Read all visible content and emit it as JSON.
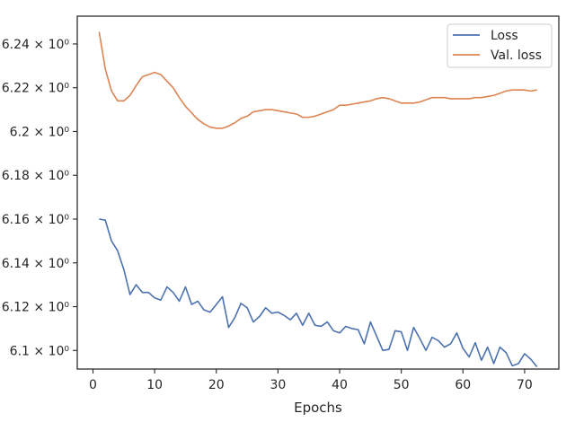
{
  "chart_data": {
    "type": "line",
    "xlabel": "Epochs",
    "ylabel": "",
    "xlim": [
      -2.55,
      75.55
    ],
    "ylim": [
      6.0915,
      6.2527
    ],
    "grid": false,
    "legend_position": "top-right",
    "x_ticks": [
      0,
      10,
      20,
      30,
      40,
      50,
      60,
      70
    ],
    "y_ticks": [
      6.1,
      6.12,
      6.14,
      6.16,
      6.18,
      6.2,
      6.22,
      6.24
    ],
    "x_tick_labels": [
      "0",
      "10",
      "20",
      "30",
      "40",
      "50",
      "60",
      "70"
    ],
    "y_tick_labels": [
      "6.1 × 10⁰",
      "6.12 × 10⁰",
      "6.14 × 10⁰",
      "6.16 × 10⁰",
      "6.18 × 10⁰",
      "6.2 × 10⁰",
      "6.22 × 10⁰",
      "6.24 × 10⁰"
    ],
    "x": [
      1,
      2,
      3,
      4,
      5,
      6,
      7,
      8,
      9,
      10,
      11,
      12,
      13,
      14,
      15,
      16,
      17,
      18,
      19,
      20,
      21,
      22,
      23,
      24,
      25,
      26,
      27,
      28,
      29,
      30,
      31,
      32,
      33,
      34,
      35,
      36,
      37,
      38,
      39,
      40,
      41,
      42,
      43,
      44,
      45,
      46,
      47,
      48,
      49,
      50,
      51,
      52,
      53,
      54,
      55,
      56,
      57,
      58,
      59,
      60,
      61,
      62,
      63,
      64,
      65,
      66,
      67,
      68,
      69,
      70,
      71,
      72
    ],
    "series": [
      {
        "name": "Loss",
        "color": "#4c72b0",
        "values": [
          6.16,
          6.1595,
          6.15,
          6.1455,
          6.137,
          6.1255,
          6.13,
          6.1265,
          6.1265,
          6.124,
          6.123,
          6.129,
          6.1265,
          6.1225,
          6.129,
          6.121,
          6.1225,
          6.1185,
          6.1175,
          6.121,
          6.1245,
          6.1105,
          6.115,
          6.1215,
          6.1195,
          6.113,
          6.1155,
          6.1195,
          6.117,
          6.1175,
          6.116,
          6.114,
          6.117,
          6.1115,
          6.117,
          6.1115,
          6.111,
          6.113,
          6.109,
          6.108,
          6.111,
          6.11,
          6.1095,
          6.103,
          6.113,
          6.1065,
          6.1,
          6.1005,
          6.109,
          6.1085,
          6.1,
          6.1105,
          6.1055,
          6.1,
          6.106,
          6.1045,
          6.1015,
          6.103,
          6.108,
          6.101,
          6.097,
          6.1035,
          6.0955,
          6.1015,
          6.094,
          6.1015,
          6.099,
          6.093,
          6.094,
          6.0985,
          6.096,
          6.0925
        ]
      },
      {
        "name": "Val. loss",
        "color": "#dd8452",
        "values": [
          6.2455,
          6.2285,
          6.2185,
          6.214,
          6.214,
          6.2165,
          6.221,
          6.225,
          6.226,
          6.227,
          6.226,
          6.223,
          6.22,
          6.2155,
          6.2115,
          6.2085,
          6.2055,
          6.2035,
          6.202,
          6.2015,
          6.2015,
          6.2025,
          6.204,
          6.206,
          6.207,
          6.209,
          6.2095,
          6.21,
          6.21,
          6.2095,
          6.209,
          6.2085,
          6.208,
          6.2065,
          6.2065,
          6.207,
          6.208,
          6.209,
          6.21,
          6.212,
          6.212,
          6.2125,
          6.213,
          6.2135,
          6.214,
          6.215,
          6.2155,
          6.215,
          6.214,
          6.213,
          6.213,
          6.213,
          6.2135,
          6.2145,
          6.2155,
          6.2155,
          6.2155,
          6.215,
          6.215,
          6.215,
          6.215,
          6.2155,
          6.2155,
          6.216,
          6.2165,
          6.2175,
          6.2185,
          6.219,
          6.219,
          6.219,
          6.2185,
          6.219
        ]
      }
    ]
  }
}
